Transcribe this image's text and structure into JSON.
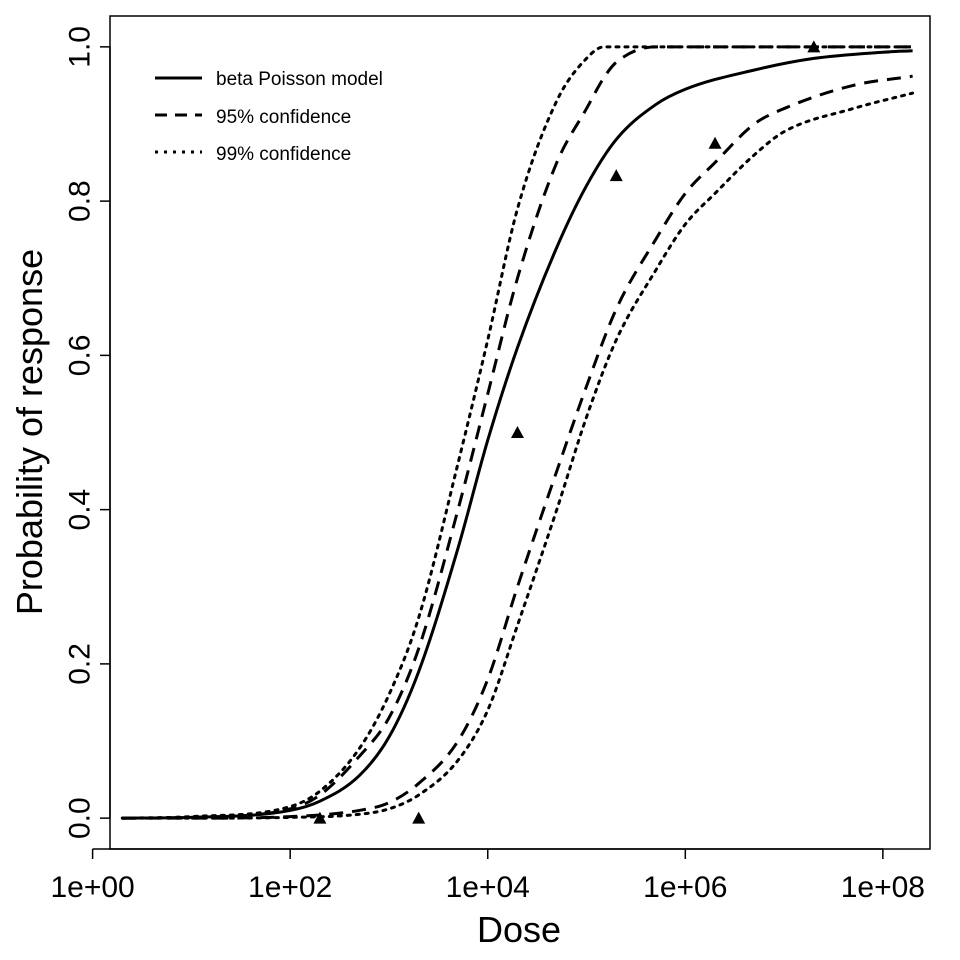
{
  "chart_data": {
    "type": "line",
    "xlabel": "Dose",
    "ylabel": "Probability of response",
    "xscale": "log10",
    "xlim": [
      1.5,
      300000000
    ],
    "ylim": [
      -0.04,
      1.04
    ],
    "x_ticks": [
      {
        "value": 1,
        "label": "1e+00"
      },
      {
        "value": 100,
        "label": "1e+02"
      },
      {
        "value": 10000,
        "label": "1e+04"
      },
      {
        "value": 1000000,
        "label": "1e+06"
      },
      {
        "value": 100000000,
        "label": "1e+08"
      }
    ],
    "y_ticks": [
      {
        "value": 0.0,
        "label": "0.0"
      },
      {
        "value": 0.2,
        "label": "0.2"
      },
      {
        "value": 0.4,
        "label": "0.4"
      },
      {
        "value": 0.6,
        "label": "0.6"
      },
      {
        "value": 0.8,
        "label": "0.8"
      },
      {
        "value": 1.0,
        "label": "1.0"
      }
    ],
    "legend": {
      "position": "top-left",
      "entries": [
        {
          "label": "beta Poisson model",
          "style": "solid"
        },
        {
          "label": "95% confidence",
          "style": "dashed"
        },
        {
          "label": "99% confidence",
          "style": "dotted"
        }
      ]
    },
    "series": [
      {
        "name": "beta Poisson model",
        "style": "solid",
        "x": [
          2,
          10,
          100,
          200,
          500,
          1000,
          2000,
          5000,
          10000,
          20000,
          50000,
          100000,
          200000,
          500000,
          1000000,
          5000000,
          20000000,
          100000000,
          200000000
        ],
        "y": [
          0.0,
          0.001,
          0.01,
          0.022,
          0.055,
          0.105,
          0.19,
          0.35,
          0.49,
          0.61,
          0.74,
          0.82,
          0.88,
          0.925,
          0.945,
          0.97,
          0.985,
          0.993,
          0.995
        ]
      },
      {
        "name": "95% confidence upper",
        "style": "dashed",
        "x": [
          2,
          10,
          100,
          200,
          500,
          1000,
          2000,
          5000,
          10000,
          20000,
          50000,
          100000,
          150000,
          200000,
          500000,
          1000000,
          100000000,
          200000000
        ],
        "y": [
          0.0,
          0.001,
          0.012,
          0.03,
          0.08,
          0.13,
          0.22,
          0.4,
          0.55,
          0.7,
          0.85,
          0.92,
          0.96,
          0.98,
          1.0,
          1.0,
          1.0,
          1.0
        ]
      },
      {
        "name": "95% confidence lower",
        "style": "dashed",
        "x": [
          2,
          10,
          100,
          500,
          1000,
          2000,
          5000,
          10000,
          20000,
          50000,
          100000,
          200000,
          500000,
          1000000,
          2000000,
          5000000,
          10000000,
          50000000,
          200000000
        ],
        "y": [
          0.0,
          0.0,
          0.002,
          0.01,
          0.02,
          0.045,
          0.1,
          0.18,
          0.3,
          0.45,
          0.56,
          0.66,
          0.75,
          0.81,
          0.85,
          0.9,
          0.92,
          0.95,
          0.962
        ]
      },
      {
        "name": "99% confidence upper",
        "style": "dotted",
        "x": [
          2,
          10,
          100,
          200,
          500,
          1000,
          2000,
          5000,
          10000,
          20000,
          50000,
          100000,
          150000,
          300000,
          1000000,
          200000000
        ],
        "y": [
          0.0,
          0.002,
          0.015,
          0.035,
          0.09,
          0.16,
          0.26,
          0.46,
          0.62,
          0.79,
          0.93,
          0.985,
          1.0,
          1.0,
          1.0,
          1.0
        ]
      },
      {
        "name": "99% confidence lower",
        "style": "dotted",
        "x": [
          2,
          10,
          100,
          500,
          1000,
          2000,
          5000,
          10000,
          20000,
          50000,
          100000,
          200000,
          500000,
          1000000,
          2000000,
          5000000,
          10000000,
          50000000,
          200000000
        ],
        "y": [
          0.0,
          0.0,
          0.001,
          0.005,
          0.012,
          0.03,
          0.075,
          0.14,
          0.25,
          0.4,
          0.52,
          0.62,
          0.71,
          0.77,
          0.81,
          0.86,
          0.89,
          0.92,
          0.94
        ]
      }
    ],
    "points": {
      "name": "observed",
      "marker": "triangle",
      "x": [
        200,
        2000,
        20000,
        200000,
        2000000,
        20000000
      ],
      "y": [
        0.0,
        0.0,
        0.5,
        0.833,
        0.875,
        1.0
      ]
    }
  }
}
